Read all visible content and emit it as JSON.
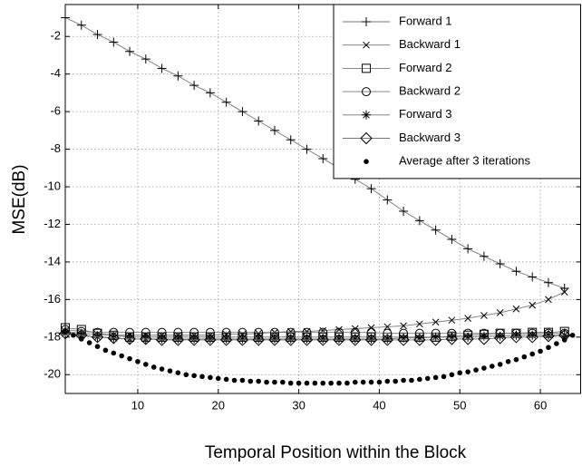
{
  "chart_data": {
    "type": "line",
    "xlabel": "Temporal Position within the Block",
    "ylabel": "MSE(dB)",
    "xlim": [
      1,
      65
    ],
    "ylim": [
      -21,
      -0.3
    ],
    "xticks": [
      10,
      20,
      30,
      40,
      50,
      60
    ],
    "yticks": [
      -20,
      -18,
      -16,
      -14,
      -12,
      -10,
      -8,
      -6,
      -4,
      -2
    ],
    "grid": true,
    "legend": "upper right",
    "series": [
      {
        "name": "Forward 1",
        "color": "#000000",
        "line_color": "#777777",
        "marker": "plus",
        "x": [
          1,
          3,
          5,
          7,
          9,
          11,
          13,
          15,
          17,
          19,
          21,
          23,
          25,
          27,
          29,
          31,
          33,
          35,
          37,
          39,
          41,
          43,
          45,
          47,
          49,
          51,
          53,
          55,
          57,
          59,
          61,
          63
        ],
        "values": [
          -1.0,
          -1.4,
          -1.9,
          -2.3,
          -2.8,
          -3.2,
          -3.7,
          -4.1,
          -4.6,
          -5.0,
          -5.5,
          -6.0,
          -6.5,
          -7.0,
          -7.5,
          -8.0,
          -8.5,
          -9.0,
          -9.6,
          -10.1,
          -10.7,
          -11.3,
          -11.8,
          -12.3,
          -12.8,
          -13.3,
          -13.7,
          -14.1,
          -14.5,
          -14.8,
          -15.1,
          -15.4
        ]
      },
      {
        "name": "Backward 1",
        "color": "#000000",
        "line_color": "#777777",
        "marker": "x",
        "x": [
          1,
          3,
          5,
          7,
          9,
          11,
          13,
          15,
          17,
          19,
          21,
          23,
          25,
          27,
          29,
          31,
          33,
          35,
          37,
          39,
          41,
          43,
          45,
          47,
          49,
          51,
          53,
          55,
          57,
          59,
          61,
          63
        ],
        "values": [
          -17.7,
          -17.8,
          -17.85,
          -17.9,
          -17.9,
          -17.9,
          -17.9,
          -17.9,
          -17.9,
          -17.9,
          -17.85,
          -17.85,
          -17.8,
          -17.75,
          -17.7,
          -17.7,
          -17.65,
          -17.6,
          -17.55,
          -17.5,
          -17.45,
          -17.4,
          -17.3,
          -17.2,
          -17.1,
          -17.0,
          -16.85,
          -16.7,
          -16.5,
          -16.3,
          -16.0,
          -15.6
        ]
      },
      {
        "name": "Forward 2",
        "color": "#000000",
        "line_color": "#777777",
        "marker": "square",
        "x": [
          1,
          3,
          5,
          7,
          9,
          11,
          13,
          15,
          17,
          19,
          21,
          23,
          25,
          27,
          29,
          31,
          33,
          35,
          37,
          39,
          41,
          43,
          45,
          47,
          49,
          51,
          53,
          55,
          57,
          59,
          61,
          63
        ],
        "values": [
          -17.5,
          -17.6,
          -17.8,
          -17.9,
          -18.0,
          -18.0,
          -18.0,
          -18.0,
          -18.0,
          -18.0,
          -18.0,
          -18.0,
          -18.0,
          -18.0,
          -18.0,
          -18.0,
          -18.0,
          -18.0,
          -18.0,
          -18.0,
          -18.0,
          -18.0,
          -18.0,
          -18.0,
          -17.95,
          -17.9,
          -17.85,
          -17.8,
          -17.8,
          -17.75,
          -17.75,
          -17.7
        ]
      },
      {
        "name": "Backward 2",
        "color": "#000000",
        "line_color": "#777777",
        "marker": "circle",
        "x": [
          1,
          3,
          5,
          7,
          9,
          11,
          13,
          15,
          17,
          19,
          21,
          23,
          25,
          27,
          29,
          31,
          33,
          35,
          37,
          39,
          41,
          43,
          45,
          47,
          49,
          51,
          53,
          55,
          57,
          59,
          61,
          63
        ],
        "values": [
          -17.6,
          -17.7,
          -17.75,
          -17.75,
          -17.75,
          -17.75,
          -17.75,
          -17.75,
          -17.75,
          -17.75,
          -17.75,
          -17.75,
          -17.75,
          -17.75,
          -17.75,
          -17.75,
          -17.75,
          -17.75,
          -17.75,
          -17.75,
          -17.8,
          -17.8,
          -17.8,
          -17.8,
          -17.8,
          -17.8,
          -17.8,
          -17.8,
          -17.8,
          -17.8,
          -17.8,
          -17.8
        ]
      },
      {
        "name": "Forward 3",
        "color": "#000000",
        "line_color": "#777777",
        "marker": "star",
        "x": [
          1,
          3,
          5,
          7,
          9,
          11,
          13,
          15,
          17,
          19,
          21,
          23,
          25,
          27,
          29,
          31,
          33,
          35,
          37,
          39,
          41,
          43,
          45,
          47,
          49,
          51,
          53,
          55,
          57,
          59,
          61,
          63
        ],
        "values": [
          -17.8,
          -17.9,
          -18.0,
          -18.05,
          -18.1,
          -18.1,
          -18.1,
          -18.1,
          -18.1,
          -18.1,
          -18.1,
          -18.1,
          -18.1,
          -18.1,
          -18.1,
          -18.1,
          -18.1,
          -18.1,
          -18.1,
          -18.1,
          -18.1,
          -18.05,
          -18.05,
          -18.0,
          -18.0,
          -18.0,
          -17.95,
          -17.95,
          -17.9,
          -17.9,
          -17.9,
          -17.9
        ]
      },
      {
        "name": "Backward 3",
        "color": "#000000",
        "line_color": "#777777",
        "marker": "diamond",
        "x": [
          1,
          3,
          5,
          7,
          9,
          11,
          13,
          15,
          17,
          19,
          21,
          23,
          25,
          27,
          29,
          31,
          33,
          35,
          37,
          39,
          41,
          43,
          45,
          47,
          49,
          51,
          53,
          55,
          57,
          59,
          61,
          63
        ],
        "values": [
          -17.8,
          -17.9,
          -18.0,
          -18.05,
          -18.1,
          -18.1,
          -18.15,
          -18.15,
          -18.15,
          -18.15,
          -18.15,
          -18.15,
          -18.15,
          -18.15,
          -18.15,
          -18.15,
          -18.15,
          -18.15,
          -18.15,
          -18.15,
          -18.15,
          -18.15,
          -18.15,
          -18.15,
          -18.1,
          -18.1,
          -18.1,
          -18.05,
          -18.0,
          -18.0,
          -17.95,
          -17.9
        ]
      },
      {
        "name": "Average after 3 iterations",
        "color": "#000000",
        "line_color": "none",
        "marker": "dot",
        "x": [
          1,
          2,
          3,
          4,
          5,
          6,
          7,
          8,
          9,
          10,
          11,
          12,
          13,
          14,
          15,
          16,
          17,
          18,
          19,
          20,
          21,
          22,
          23,
          24,
          25,
          26,
          27,
          28,
          29,
          30,
          31,
          32,
          33,
          34,
          35,
          36,
          37,
          38,
          39,
          40,
          41,
          42,
          43,
          44,
          45,
          46,
          47,
          48,
          49,
          50,
          51,
          52,
          53,
          54,
          55,
          56,
          57,
          58,
          59,
          60,
          61,
          62,
          63,
          64
        ],
        "values": [
          -17.7,
          -17.9,
          -18.1,
          -18.3,
          -18.5,
          -18.7,
          -18.85,
          -19.0,
          -19.15,
          -19.3,
          -19.45,
          -19.6,
          -19.7,
          -19.8,
          -19.9,
          -20.0,
          -20.05,
          -20.1,
          -20.15,
          -20.2,
          -20.25,
          -20.3,
          -20.3,
          -20.35,
          -20.35,
          -20.4,
          -20.4,
          -20.4,
          -20.45,
          -20.45,
          -20.45,
          -20.45,
          -20.45,
          -20.45,
          -20.45,
          -20.45,
          -20.4,
          -20.4,
          -20.4,
          -20.4,
          -20.35,
          -20.35,
          -20.3,
          -20.3,
          -20.25,
          -20.2,
          -20.15,
          -20.1,
          -20.0,
          -19.9,
          -19.85,
          -19.75,
          -19.65,
          -19.55,
          -19.45,
          -19.3,
          -19.2,
          -19.05,
          -18.9,
          -18.75,
          -18.55,
          -18.35,
          -18.15,
          -17.9
        ]
      }
    ]
  }
}
